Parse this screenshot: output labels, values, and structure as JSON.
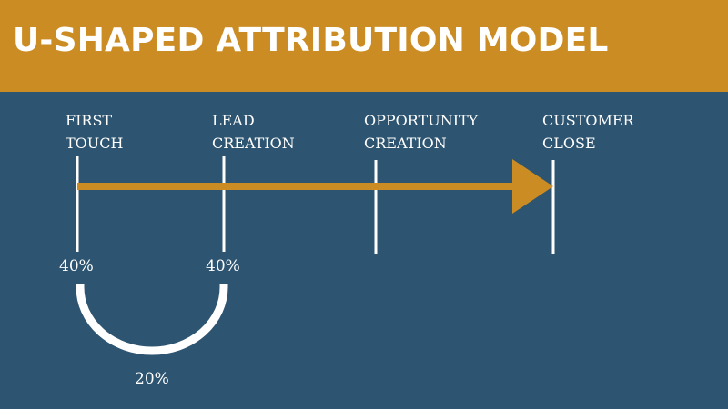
{
  "header": {
    "title": "U-SHAPED ATTRIBUTION MODEL"
  },
  "stages": [
    {
      "line1": "FIRST",
      "line2": "TOUCH"
    },
    {
      "line1": "LEAD",
      "line2": "CREATION"
    },
    {
      "line1": "OPPORTUNITY",
      "line2": "CREATION"
    },
    {
      "line1": "CUSTOMER",
      "line2": "CLOSE"
    }
  ],
  "attribution": {
    "first_touch": "40%",
    "lead_creation": "40%",
    "middle": "20%"
  },
  "colors": {
    "header_bg": "#cb8c23",
    "body_bg": "#2d5470",
    "arrow": "#cb8c23",
    "lines": "#ffffff"
  }
}
